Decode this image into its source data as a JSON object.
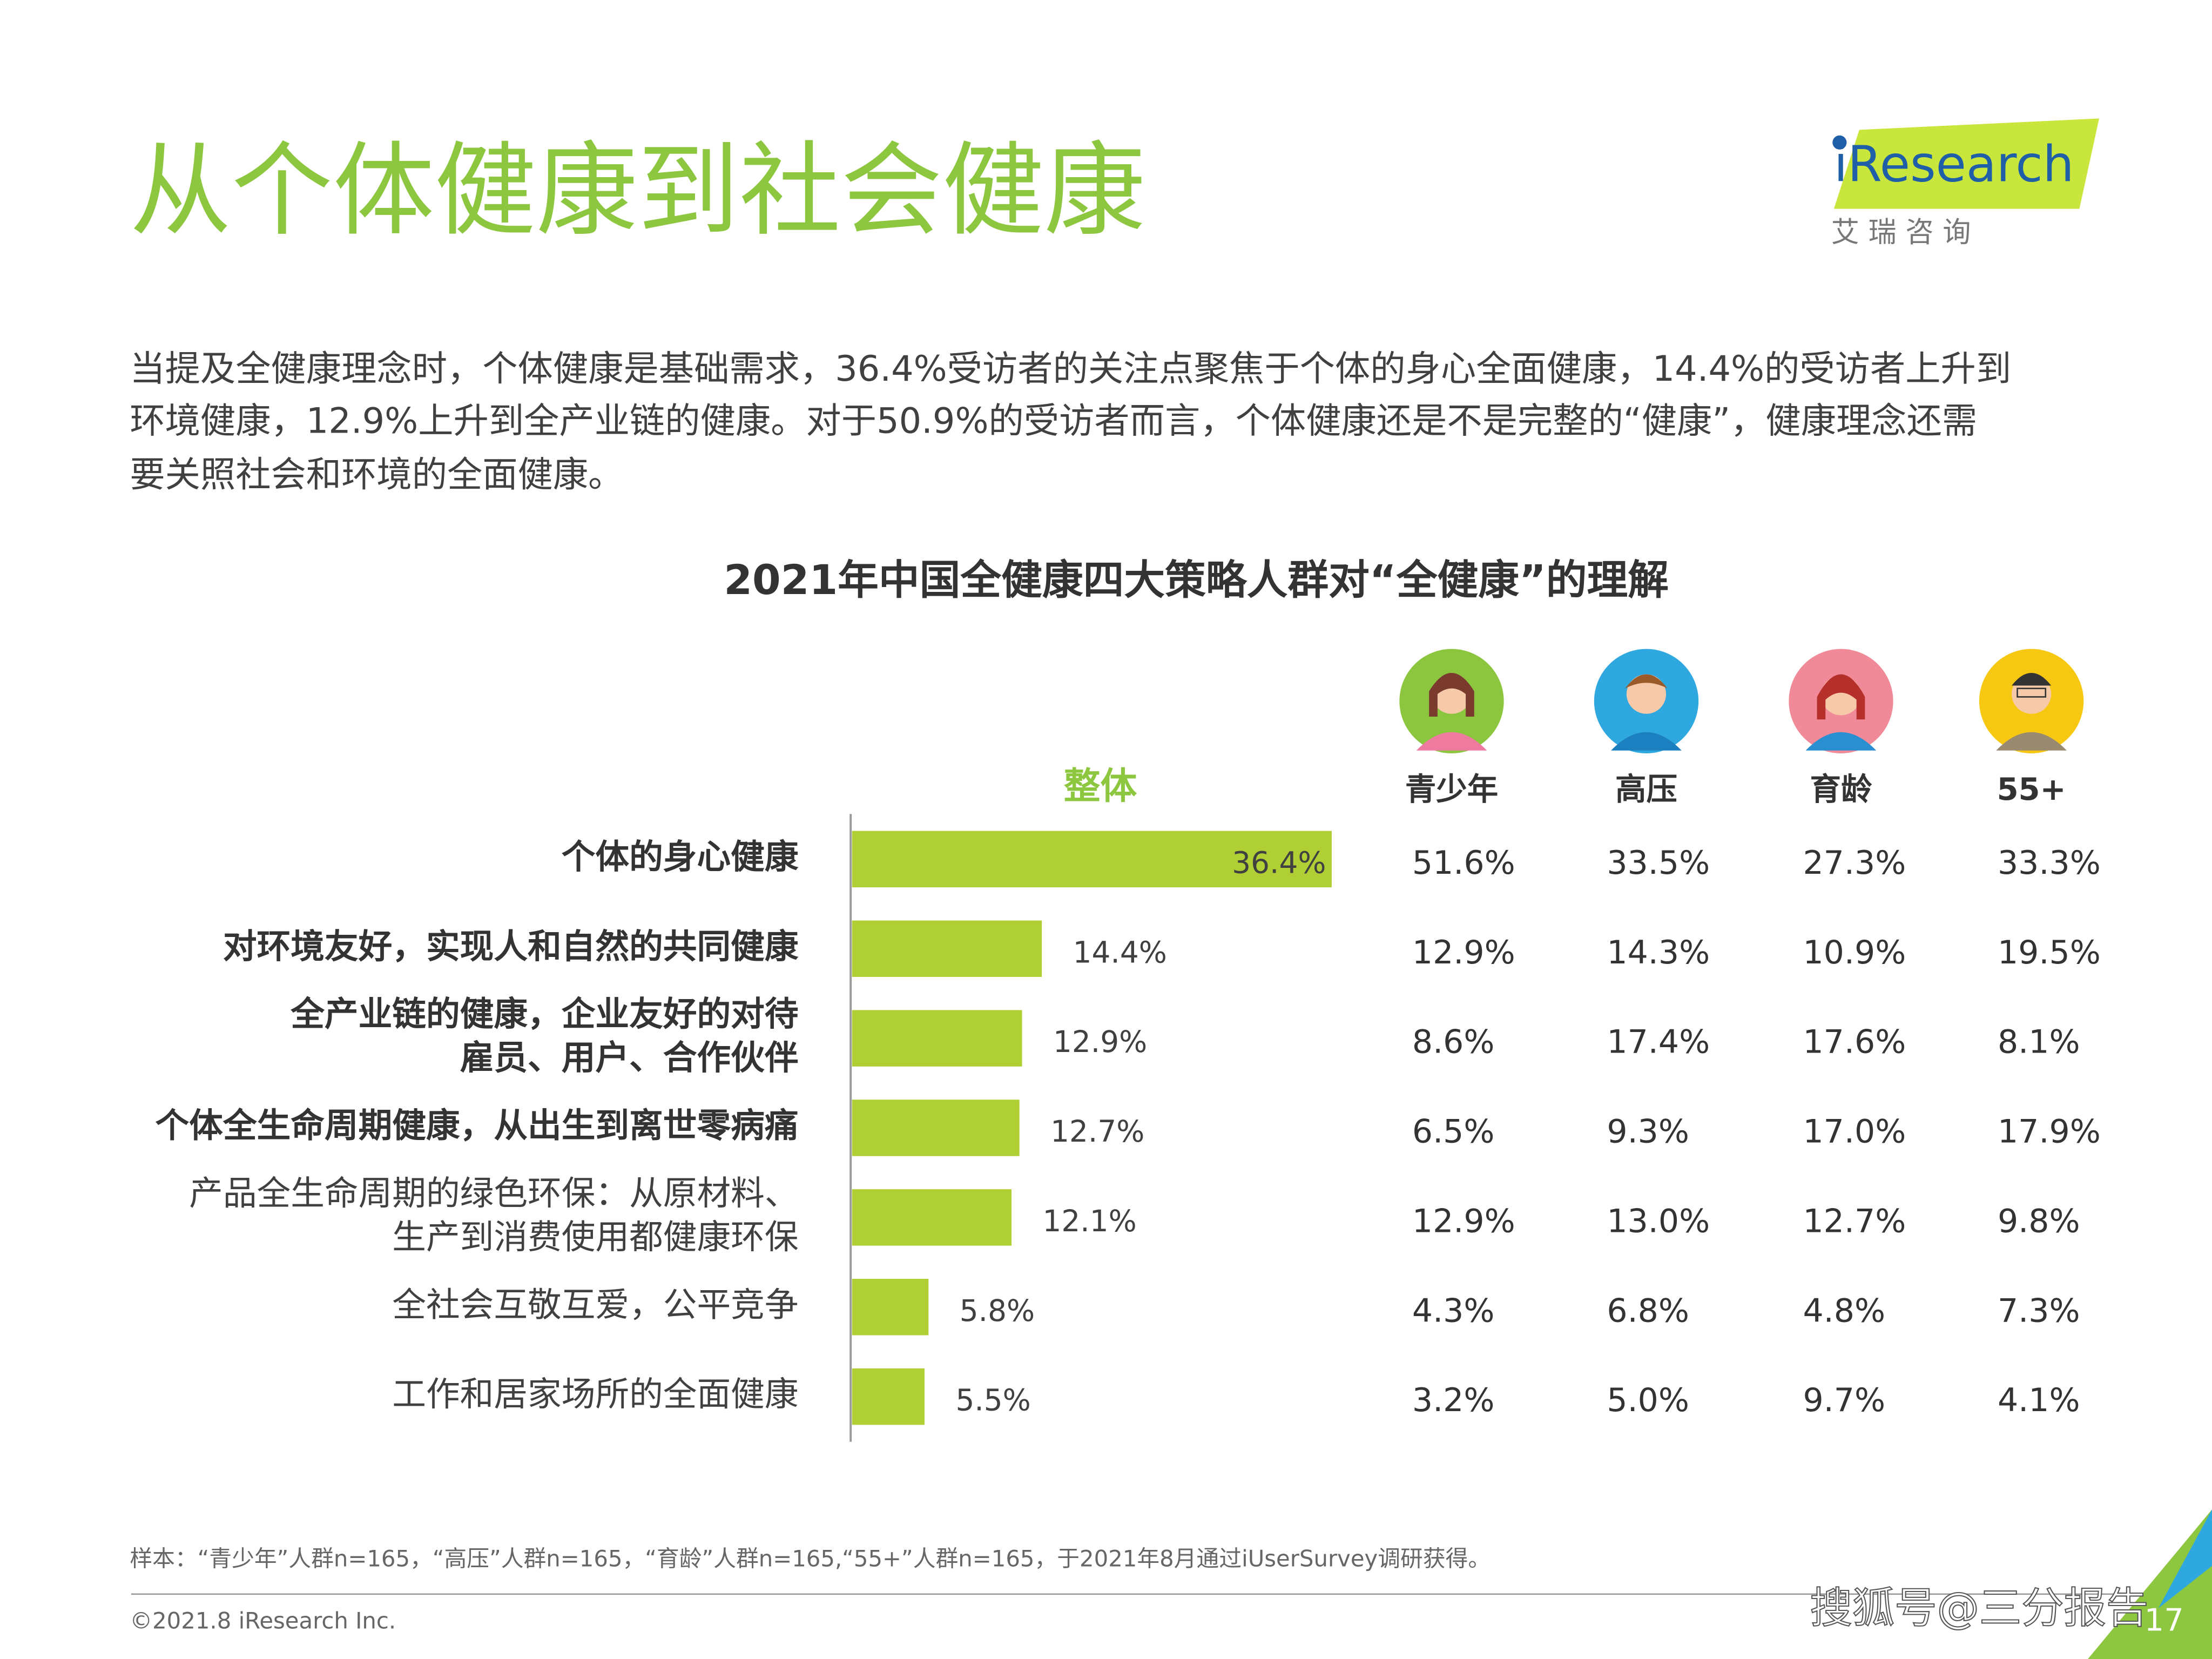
{
  "header": {
    "title": "从个体健康到社会健康",
    "logo": "iResearch",
    "logo_sub": "艾 瑞 咨 询"
  },
  "description": [
    "当提及全健康理念时，个体健康是基础需求，36.4%受访者的关注点聚焦于个体的身心全面健康，14.4%的受访者上升到",
    "环境健康，12.9%上升到全产业链的健康。对于50.9%的受访者而言，个体健康还是不是完整的“健康”，健康理念还需",
    "要关照社会和环境的全面健康。"
  ],
  "chart_data": {
    "type": "bar",
    "orientation": "horizontal",
    "title": "2021年中国全健康四大策略人群对“全健康”的理解",
    "series_label": "整体",
    "categories": [
      "个体的身心健康",
      "对环境友好，实现人和自然的共同健康",
      "全产业链的健康，企业友好的对待\n雇员、用户、合作伙伴",
      "个体全生命周期健康，从出生到离世零病痛",
      "产品全生命周期的绿色环保：从原材料、\n生产到消费使用都健康环保",
      "全社会互敬互爱，公平竞争",
      "工作和居家场所的全面健康"
    ],
    "values": [
      36.4,
      14.4,
      12.9,
      12.7,
      12.1,
      5.8,
      5.5
    ],
    "value_labels": [
      "36.4%",
      "14.4%",
      "12.9%",
      "12.7%",
      "12.1%",
      "5.8%",
      "5.5%"
    ],
    "color": "#b0cf34"
  },
  "group_table": {
    "headers": [
      "青少年",
      "高压",
      "育龄",
      "55+"
    ],
    "rows": [
      [
        "51.6%",
        "33.5%",
        "27.3%",
        "33.3%"
      ],
      [
        "12.9%",
        "14.3%",
        "10.9%",
        "19.5%"
      ],
      [
        "8.6%",
        "17.4%",
        "17.6%",
        "8.1%"
      ],
      [
        "6.5%",
        "9.3%",
        "17.0%",
        "17.9%"
      ],
      [
        "12.9%",
        "13.0%",
        "12.7%",
        "9.8%"
      ],
      [
        "4.3%",
        "6.8%",
        "4.8%",
        "7.3%"
      ],
      [
        "3.2%",
        "5.0%",
        "9.7%",
        "4.1%"
      ]
    ]
  },
  "footer": {
    "note": "样本：“青少年”人群n=165，“高压”人群n=165，“育龄”人群n=165,“55+”人群n=165，于2021年8月通过iUserSurvey调研获得。",
    "copyright": "©2021.8 iResearch Inc.",
    "page": "17",
    "watermark": "搜狐号@三分报告"
  }
}
